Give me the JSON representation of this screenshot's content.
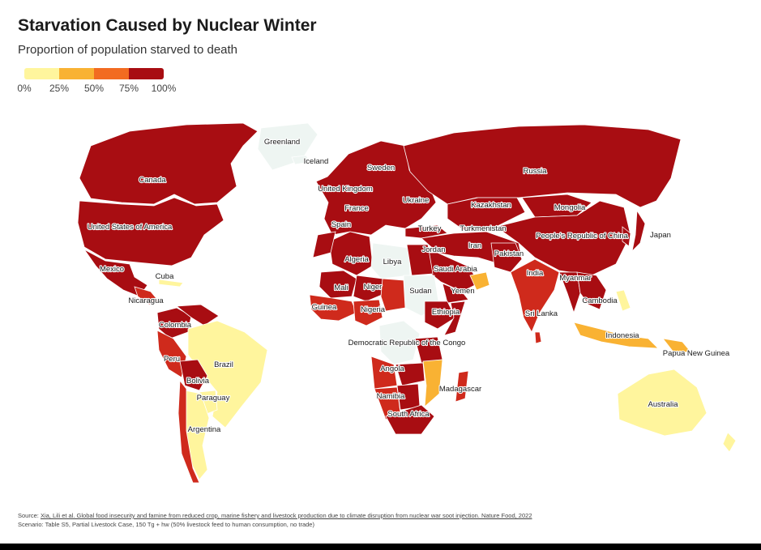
{
  "title": "Starvation Caused by Nuclear Winter",
  "subtitle": "Proportion of population starved to death",
  "legend": {
    "ticks": [
      "0%",
      "25%",
      "50%",
      "75%",
      "100%"
    ],
    "colors": [
      "#fff59d",
      "#f9b233",
      "#f26b21",
      "#cf2a1c",
      "#a80d12"
    ]
  },
  "colors": {
    "no_data": "#eef5f2",
    "border": "#ffffff"
  },
  "regions": [
    {
      "name": "Canada",
      "level": 4
    },
    {
      "name": "United States of America",
      "level": 4
    },
    {
      "name": "Mexico",
      "level": 4
    },
    {
      "name": "Central America",
      "level": 3
    },
    {
      "name": "Cuba",
      "level": 0
    },
    {
      "name": "Colombia",
      "level": 4
    },
    {
      "name": "Venezuela",
      "level": 4
    },
    {
      "name": "Brazil",
      "level": 0
    },
    {
      "name": "Peru",
      "level": 3
    },
    {
      "name": "Bolivia",
      "level": 4
    },
    {
      "name": "Paraguay",
      "level": 0
    },
    {
      "name": "Argentina",
      "level": 0
    },
    {
      "name": "Chile",
      "level": 3
    },
    {
      "name": "Greenland",
      "level": null
    },
    {
      "name": "Iceland",
      "level": null
    },
    {
      "name": "Europe",
      "level": 4
    },
    {
      "name": "Russia",
      "level": 4
    },
    {
      "name": "Kazakhstan",
      "level": 4
    },
    {
      "name": "Mongolia",
      "level": 4
    },
    {
      "name": "People's Republic of China",
      "level": 4
    },
    {
      "name": "Japan",
      "level": 4
    },
    {
      "name": "Korea",
      "level": 4
    },
    {
      "name": "Turkey",
      "level": 4
    },
    {
      "name": "Middle East",
      "level": 4
    },
    {
      "name": "Saudi Arabia",
      "level": 4
    },
    {
      "name": "Yemen",
      "level": 4
    },
    {
      "name": "Oman",
      "level": 1
    },
    {
      "name": "Pakistan",
      "level": 4
    },
    {
      "name": "India",
      "level": 3
    },
    {
      "name": "Sri Lanka",
      "level": 3
    },
    {
      "name": "Myanmar",
      "level": 4
    },
    {
      "name": "Southeast Asia",
      "level": 4
    },
    {
      "name": "Indonesia",
      "level": 1
    },
    {
      "name": "Philippines",
      "level": 0
    },
    {
      "name": "Papua New Guinea",
      "level": 1
    },
    {
      "name": "Australia",
      "level": 0
    },
    {
      "name": "New Zealand",
      "level": 0
    },
    {
      "name": "Algeria",
      "level": 4
    },
    {
      "name": "Morocco",
      "level": 4
    },
    {
      "name": "Libya",
      "level": null
    },
    {
      "name": "Egypt",
      "level": 4
    },
    {
      "name": "Sudan",
      "level": null
    },
    {
      "name": "Mali",
      "level": 4
    },
    {
      "name": "Niger",
      "level": 4
    },
    {
      "name": "West Africa",
      "level": 3
    },
    {
      "name": "Nigeria",
      "level": 3
    },
    {
      "name": "Chad",
      "level": 3
    },
    {
      "name": "Ethiopia",
      "level": 4
    },
    {
      "name": "Somalia",
      "level": 4
    },
    {
      "name": "Democratic Republic of the Congo",
      "level": null
    },
    {
      "name": "Tanzania",
      "level": 4
    },
    {
      "name": "Angola",
      "level": 3
    },
    {
      "name": "Zambia",
      "level": 4
    },
    {
      "name": "Mozambique",
      "level": 1
    },
    {
      "name": "Namibia",
      "level": 3
    },
    {
      "name": "Botswana",
      "level": 4
    },
    {
      "name": "South Africa",
      "level": 4
    },
    {
      "name": "Madagascar",
      "level": 3
    }
  ],
  "labels": [
    "Greenland",
    "Iceland",
    "Canada",
    "Sweden",
    "United Kingdom",
    "France",
    "Ukraine",
    "Russia",
    "Kazakhstan",
    "Mongolia",
    "Spain",
    "Turkey",
    "Turkmenistan",
    "Jordan",
    "Iran",
    "People's Republic of China",
    "Japan",
    "United States of America",
    "Algeria",
    "Libya",
    "Saudi Arabia",
    "Pakistan",
    "Mexico",
    "Cuba",
    "India",
    "Myanmar",
    "Mali",
    "Niger",
    "Sudan",
    "Yemen",
    "Nicaragua",
    "Guinea",
    "Nigeria",
    "Ethiopia",
    "Sri Lanka",
    "Cambodia",
    "Colombia",
    "Indonesia",
    "Democratic Republic of the Congo",
    "Peru",
    "Papua New Guinea",
    "Brazil",
    "Angola",
    "Bolivia",
    "Madagascar",
    "Namibia",
    "Paraguay",
    "Australia",
    "South Africa",
    "Argentina"
  ],
  "footer": {
    "source_prefix": "Source: ",
    "source_text": "Xia, Lili et al. Global food insecurity and famine from reduced crop, marine fishery and livestock production due to climate disruption from nuclear war soot injection. Nature Food, 2022",
    "scenario": "Scenario: Table S5, Partial Livestock Case, 150 Tg + hw (50% livestock feed to human consumption, no trade)"
  }
}
